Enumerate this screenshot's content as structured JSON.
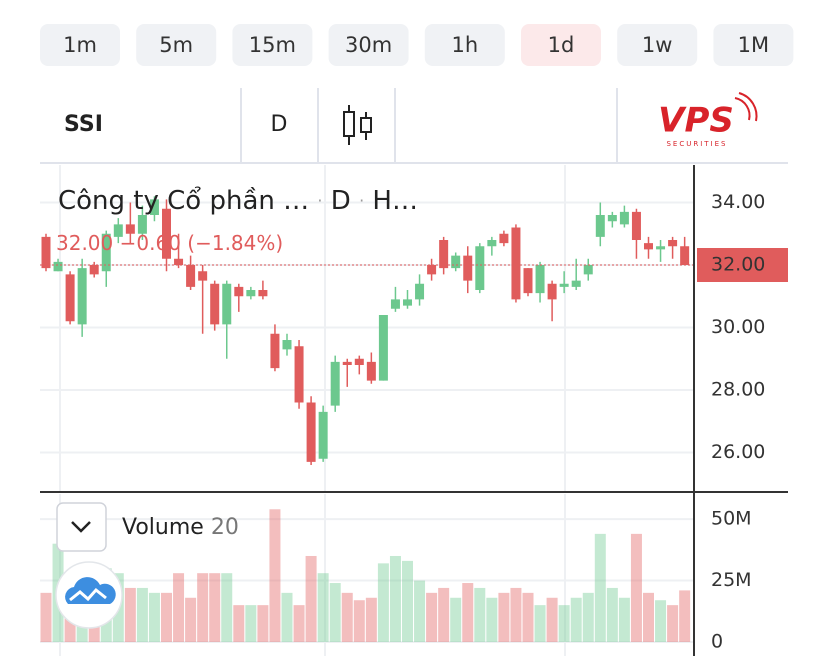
{
  "timeframes": [
    "1m",
    "5m",
    "15m",
    "30m",
    "1h",
    "1d",
    "1w",
    "1M"
  ],
  "active_timeframe": "1d",
  "symbol": "SSI",
  "interval": "D",
  "logo": {
    "name": "VPS",
    "tagline": "SECURITIES"
  },
  "chart_data": {
    "type": "candlestick",
    "title": "Công ty Cổ phần …",
    "separator": "·",
    "interval": "D",
    "exchange": "H…",
    "last": {
      "value": 32,
      "label": "32.00"
    },
    "change": {
      "value": -0.6,
      "label": "−0.60"
    },
    "change_pct": {
      "value": -1.84,
      "label": "(−1.84%)"
    },
    "up_color": "#6cc88e",
    "down_color": "#e05c5c",
    "ylim": [
      24.8,
      35.2
    ],
    "yticks": [
      {
        "value": 26,
        "label": "26.00"
      },
      {
        "value": 28,
        "label": "28.00"
      },
      {
        "value": 30,
        "label": "30.00"
      },
      {
        "value": 32,
        "label": "32.00"
      },
      {
        "value": 34,
        "label": "34.00"
      }
    ],
    "open": [
      32.9,
      31.8,
      31.7,
      30.1,
      32,
      31.8,
      32.9,
      33.3,
      33,
      33.6,
      33.8,
      32.2,
      32,
      31.8,
      31.4,
      30.1,
      31.3,
      31,
      31.2,
      29.8,
      29.3,
      29.4,
      27.6,
      25.8,
      27.5,
      28.9,
      29,
      28.9,
      28.3,
      30.6,
      30.7,
      30.9,
      32,
      32.8,
      31.9,
      32.3,
      31.2,
      32.6,
      33,
      33.2,
      31.9,
      31.1,
      31.4,
      31.3,
      31.3,
      31.7,
      32.9,
      33.4,
      33.3,
      33.7,
      32.7,
      32.5,
      32.8,
      32.6
    ],
    "high": [
      33,
      32.2,
      31.8,
      32.2,
      32.1,
      33.1,
      33.5,
      34,
      33.9,
      34.2,
      34.1,
      33,
      32.3,
      32,
      31.5,
      31.5,
      31.4,
      31.3,
      31.5,
      30.1,
      29.8,
      29.6,
      27.8,
      27.5,
      29.1,
      29,
      29.1,
      29.2,
      30.4,
      31.3,
      31.2,
      31.7,
      32.2,
      32.9,
      32.4,
      32.6,
      32.7,
      32.9,
      33.1,
      33.3,
      31.9,
      32.1,
      31.5,
      31.8,
      32.2,
      32.2,
      34,
      33.7,
      33.9,
      33.8,
      32.9,
      32.8,
      32.9,
      32.9
    ],
    "low": [
      31.8,
      31.8,
      30.1,
      29.7,
      31.6,
      31.3,
      32.7,
      32.7,
      32.8,
      33.4,
      31.8,
      31.9,
      31.2,
      29.8,
      29.9,
      29,
      30.5,
      30.9,
      30.9,
      28.6,
      29.1,
      27.4,
      25.6,
      25.7,
      27.3,
      28.1,
      28.5,
      28.2,
      28.3,
      30.5,
      30.6,
      30.7,
      31.5,
      31.7,
      31.8,
      31.1,
      31.1,
      32.3,
      32.6,
      30.8,
      31,
      30.8,
      30.2,
      31.1,
      31.2,
      31.5,
      32.6,
      33.2,
      33.2,
      32.2,
      32.2,
      32.1,
      32.2,
      32
    ],
    "close": [
      31.9,
      32.1,
      30.2,
      31.9,
      31.7,
      33,
      33.3,
      33,
      33.6,
      34.1,
      32.2,
      32,
      31.3,
      31.5,
      30.1,
      31.4,
      31,
      31.2,
      31,
      28.7,
      29.6,
      27.6,
      25.7,
      27.3,
      28.9,
      28.8,
      28.8,
      28.3,
      30.4,
      30.9,
      30.9,
      31.4,
      31.7,
      31.9,
      32.3,
      31.5,
      32.6,
      32.8,
      32.7,
      30.9,
      31.1,
      32,
      30.9,
      31.4,
      31.5,
      32,
      33.6,
      33.6,
      33.7,
      32.8,
      32.5,
      32.6,
      32.6,
      32
    ],
    "volume": [
      20,
      40,
      28,
      22,
      25,
      30,
      28,
      22,
      22,
      20,
      20,
      28,
      18,
      28,
      28,
      28,
      15,
      15,
      15,
      54,
      20,
      15,
      35,
      28,
      24,
      20,
      17,
      18,
      32,
      35,
      33,
      25,
      20,
      22,
      18,
      24,
      22,
      18,
      20,
      22,
      20,
      15,
      18,
      15,
      18,
      20,
      44,
      22,
      18,
      44,
      20,
      17,
      15,
      21
    ],
    "volume_pane": {
      "label": "Volume",
      "length": 20,
      "ylim": [
        0,
        59
      ],
      "yticks": [
        0,
        {
          "value": 25,
          "label": "25M"
        },
        {
          "value": 50,
          "label": "50M"
        }
      ]
    }
  }
}
